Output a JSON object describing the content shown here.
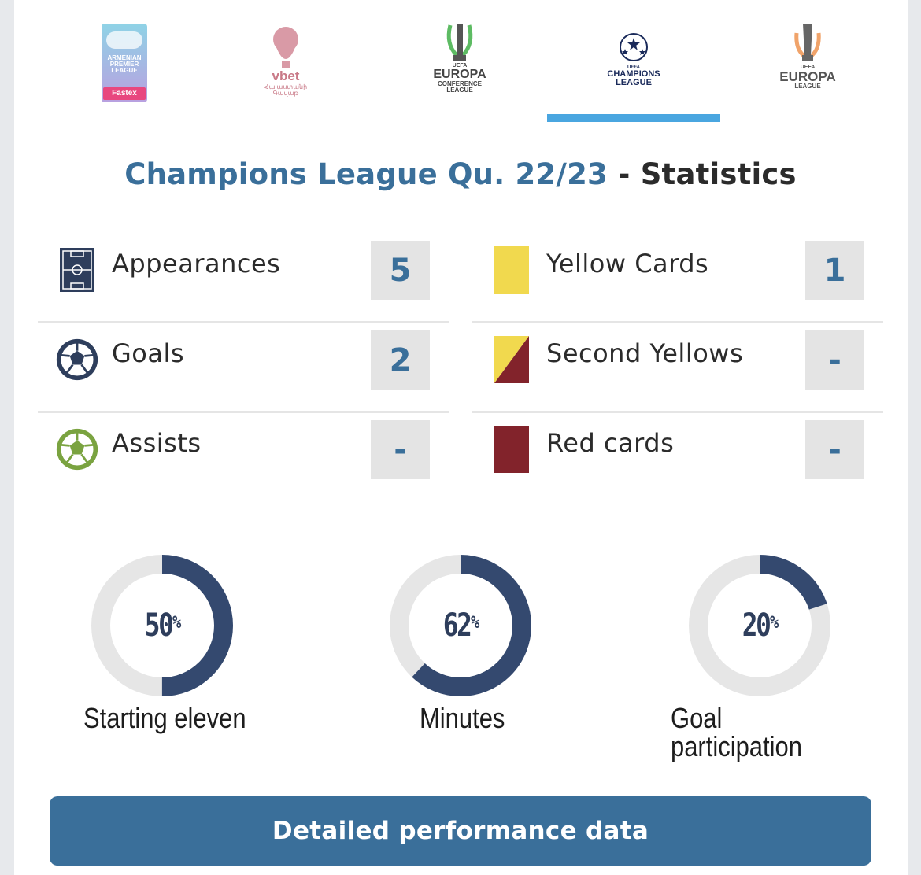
{
  "competitions": {
    "tabs": [
      {
        "name": "armenian-premier-league",
        "logo_lines": [
          "ARMENIAN",
          "PREMIER",
          "LEAGUE"
        ],
        "sponsor": "Fastex",
        "active": false
      },
      {
        "name": "vbet-armenian-cup",
        "logo_lines": [
          "vbet",
          "Հայաստանի",
          "Գավաթ"
        ],
        "active": false
      },
      {
        "name": "europa-conference-league",
        "logo_lines": [
          "UEFA",
          "EUROPA",
          "CONFERENCE",
          "LEAGUE"
        ],
        "active": false
      },
      {
        "name": "champions-league",
        "logo_lines": [
          "UEFA",
          "CHAMPIONS",
          "LEAGUE"
        ],
        "active": true
      },
      {
        "name": "europa-league",
        "logo_lines": [
          "UEFA",
          "EUROPA",
          "LEAGUE"
        ],
        "active": false
      }
    ],
    "active_color": "#4aa6e0"
  },
  "title": {
    "competition": "Champions League Qu. 22/23",
    "separator": " - ",
    "section": "Statistics"
  },
  "stats_left": [
    {
      "label": "Appearances",
      "value": "5",
      "icon": "pitch-icon"
    },
    {
      "label": "Goals",
      "value": "2",
      "icon": "ball-dark-icon"
    },
    {
      "label": "Assists",
      "value": "-",
      "icon": "ball-green-icon"
    }
  ],
  "stats_right": [
    {
      "label": "Yellow Cards",
      "value": "1",
      "icon": "yellow-card-icon"
    },
    {
      "label": "Second Yellows",
      "value": "-",
      "icon": "second-yellow-icon"
    },
    {
      "label": "Red cards",
      "value": "-",
      "icon": "red-card-icon"
    }
  ],
  "donuts": [
    {
      "value": "50",
      "unit": "%",
      "fraction": 0.5,
      "label_lines": [
        "Starting eleven"
      ]
    },
    {
      "value": "62",
      "unit": "%",
      "fraction": 0.62,
      "label_lines": [
        "Minutes"
      ]
    },
    {
      "value": "20",
      "unit": "%",
      "fraction": 0.2,
      "label_lines": [
        "Goal",
        "participation"
      ]
    }
  ],
  "colors": {
    "brand_blue": "#3a6f9a",
    "donut_fill": "#34496f",
    "donut_track": "#e6e6e6",
    "yellow": "#f1d94e",
    "red": "#82232b"
  },
  "cta": {
    "label": "Detailed performance data"
  }
}
